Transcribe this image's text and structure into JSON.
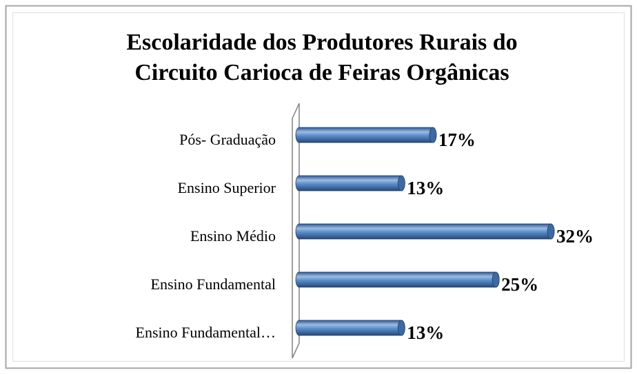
{
  "chart_data": {
    "type": "bar",
    "title": [
      "Escolaridade dos Produtores Rurais do",
      "Circuito Carioca de Feiras Orgânicas"
    ],
    "categories": [
      "Pós- Graduação",
      "Ensino Superior",
      "Ensino Médio",
      "Ensino Fundamental",
      "Ensino Fundamental…"
    ],
    "values": [
      17,
      13,
      32,
      25,
      13
    ],
    "value_labels": [
      "17%",
      "13%",
      "32%",
      "25%",
      "13%"
    ],
    "color": "#4f81bd"
  }
}
